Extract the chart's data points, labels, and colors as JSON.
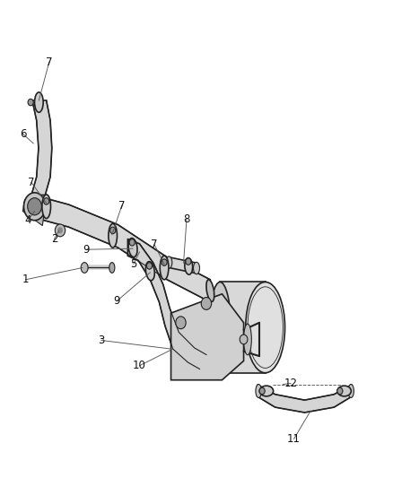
{
  "title": "",
  "bg_color": "#ffffff",
  "fig_width": 4.38,
  "fig_height": 5.33,
  "dpi": 100,
  "line_color": "#222222",
  "text_color": "#111111",
  "label_fontsize": 8.5,
  "part_linewidth": 1.2
}
